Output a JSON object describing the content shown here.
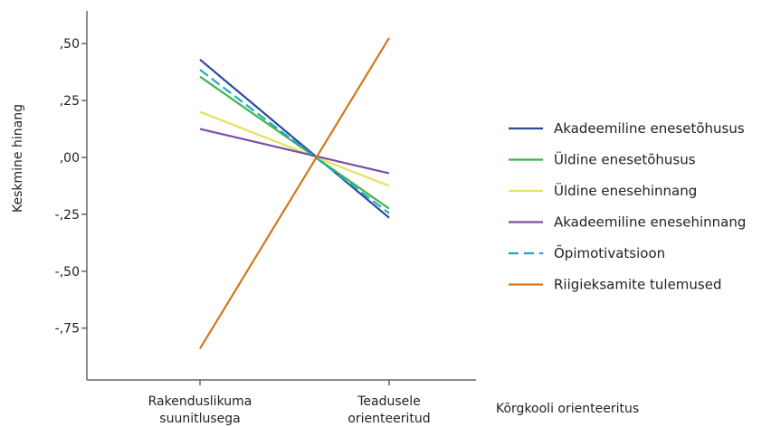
{
  "chart_data": {
    "type": "line",
    "title": "",
    "xlabel": "Kõrgkooli orienteeritus",
    "ylabel": "Keskmine hinang",
    "categories": [
      [
        "Rakenduslikuma",
        "suunitlusega"
      ],
      [
        "Teadusele",
        "orienteeritud"
      ]
    ],
    "yticks": [
      0.5,
      0.25,
      0.0,
      -0.25,
      -0.5,
      -0.75
    ],
    "ytick_labels": [
      ",50",
      ",25",
      ",00",
      "-,25",
      "-,50",
      "-,75"
    ],
    "ylim": [
      -0.97,
      0.63
    ],
    "grid": false,
    "legend_position": "right",
    "series": [
      {
        "name": "Akadeemiline enesetõhusus",
        "color": "#2b4a9a",
        "dash": "solid",
        "values": [
          0.43,
          -0.265
        ]
      },
      {
        "name": "Üldine enesetõhusus",
        "color": "#3db54a",
        "dash": "solid",
        "values": [
          0.355,
          -0.225
        ]
      },
      {
        "name": "Üldine enesehinnang",
        "color": "#e3e35c",
        "dash": "solid",
        "values": [
          0.2,
          -0.125
        ]
      },
      {
        "name": "Akadeemiline enesehinnang",
        "color": "#7b4fa0",
        "dash": "solid",
        "values": [
          0.125,
          -0.07
        ]
      },
      {
        "name": "Õpimotivatsioon",
        "color": "#25a7c4",
        "dash": "dashed",
        "values": [
          0.385,
          -0.245
        ]
      },
      {
        "name": "Riigieksamite tulemused",
        "color": "#d4761c",
        "dash": "solid",
        "values": [
          -0.84,
          0.525
        ]
      }
    ]
  }
}
